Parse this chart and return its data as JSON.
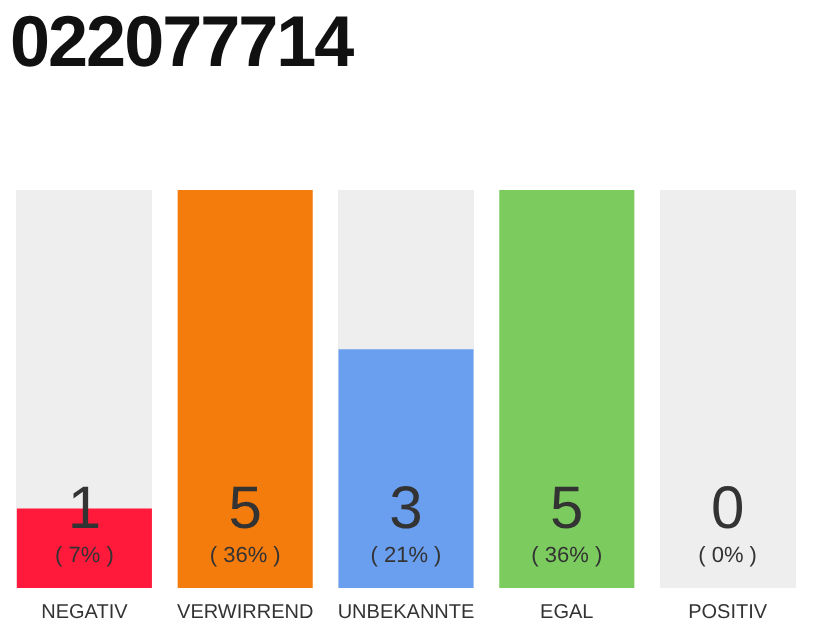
{
  "chart_data": {
    "type": "bar",
    "title": "022077714",
    "categories": [
      "NEGATIV",
      "VERWIRREND",
      "UNBEKANNTE",
      "EGAL",
      "POSITIV"
    ],
    "values": [
      1,
      5,
      3,
      5,
      0
    ],
    "colors": [
      "#ff1a3c",
      "#f47c0d",
      "#6a9ff0",
      "#7ccb5f",
      "#cccccc"
    ],
    "data_labels": true,
    "annotations": [
      "( 7% )",
      "( 36% )",
      "( 21% )",
      "( 36% )",
      "( 0% )"
    ],
    "grid": false,
    "legend": false
  }
}
